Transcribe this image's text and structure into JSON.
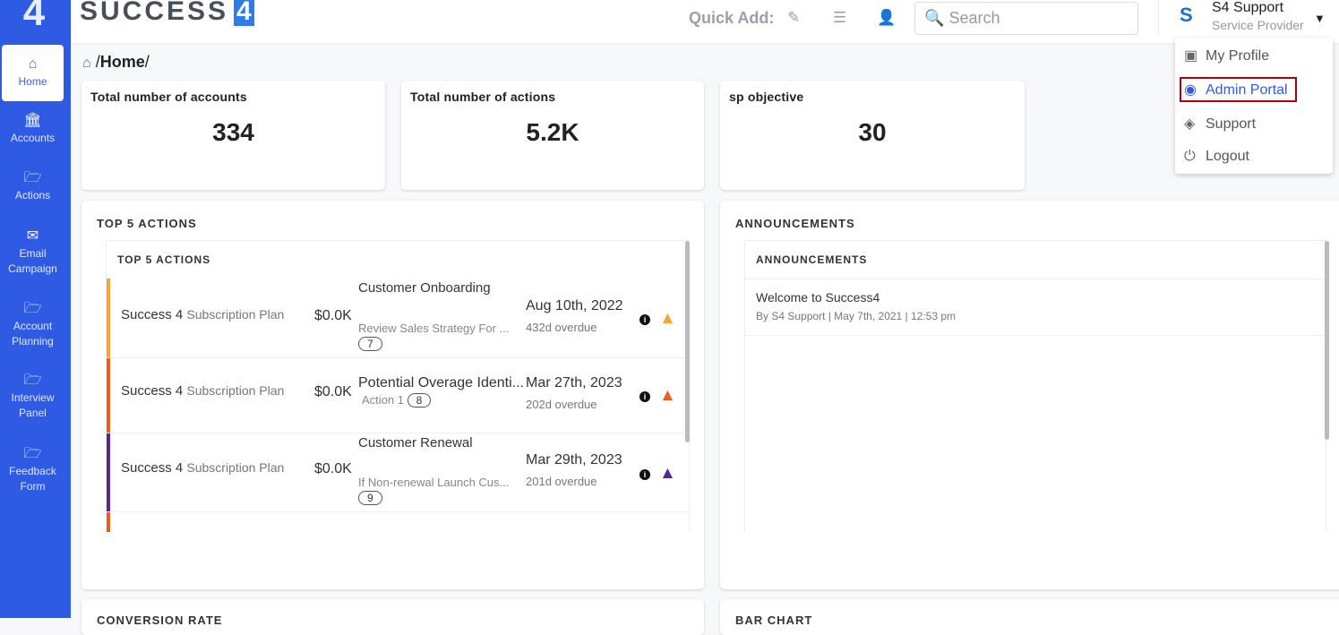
{
  "sidebar": {
    "logo": "4",
    "items": [
      {
        "label": "Home",
        "icon": "home-icon"
      },
      {
        "label": "Accounts",
        "icon": "bank-icon"
      },
      {
        "label": "Actions",
        "icon": "folder-icon"
      },
      {
        "label": "Email Campaign",
        "icon": "envelope-icon"
      },
      {
        "label": "Account Planning",
        "icon": "folder-icon"
      },
      {
        "label": "Interview Panel",
        "icon": "folder-icon"
      },
      {
        "label": "Feedback Form",
        "icon": "folder-icon"
      }
    ]
  },
  "header": {
    "brand": "SUCCESS",
    "brand_mark": "4",
    "quick_add": "Quick Add:",
    "search_placeholder": "Search",
    "user_name": "S4 Support",
    "user_role": "Service Provider"
  },
  "breadcrumb": {
    "sep": "/",
    "current": "Home",
    "trail": "/"
  },
  "stats": [
    {
      "title": "Total number of accounts",
      "value": "334"
    },
    {
      "title": "Total number of actions",
      "value": "5.2K"
    },
    {
      "title": "sp objective",
      "value": "30"
    }
  ],
  "top_actions": {
    "title": "TOP 5 ACTIONS",
    "inner_title": "TOP 5 ACTIONS",
    "rows": [
      {
        "account": "Success 4",
        "plan": "Subscription Plan",
        "amount": "$0.0K",
        "title": "Customer Onboarding",
        "subtitle": "Review Sales Strategy For ...",
        "count": "7",
        "date": "Aug 10th, 2022",
        "overdue": "432d overdue",
        "color": "#f7a52f"
      },
      {
        "account": "Success 4",
        "plan": "Subscription Plan",
        "amount": "$0.0K",
        "title": "Potential Overage Identi...",
        "subtitle": "Action 1",
        "count": "8",
        "date": "Mar 27th, 2023",
        "overdue": "202d overdue",
        "color": "#e8601c"
      },
      {
        "account": "Success 4",
        "plan": "Subscription Plan",
        "amount": "$0.0K",
        "title": "Customer Renewal",
        "subtitle": "If Non-renewal Launch Cus...",
        "count": "9",
        "date": "Mar 29th, 2023",
        "overdue": "201d overdue",
        "color": "#56288f"
      }
    ]
  },
  "announcements": {
    "title": "ANNOUNCEMENTS",
    "inner_title": "ANNOUNCEMENTS",
    "items": [
      {
        "title": "Welcome to Success4",
        "meta": "By S4 Support | May 7th, 2021 | 12:53 pm"
      }
    ]
  },
  "bottom_panels": [
    "CONVERSION RATE",
    "BAR CHART"
  ],
  "user_menu": [
    {
      "label": "My Profile"
    },
    {
      "label": "Admin Portal"
    },
    {
      "label": "Support"
    },
    {
      "label": "Logout"
    }
  ]
}
